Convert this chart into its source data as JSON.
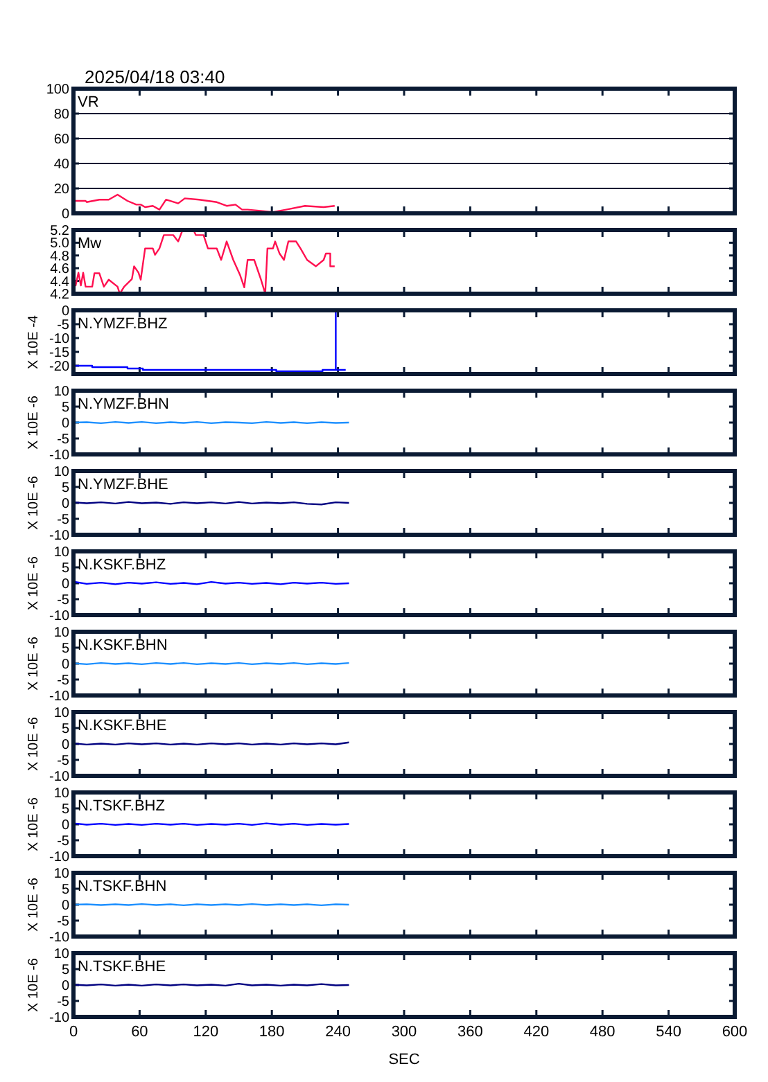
{
  "chart_data": [
    {
      "type": "line",
      "title": "VR",
      "annotations": [
        "2025/04/18 03:40"
      ],
      "xlim": [
        0,
        600
      ],
      "xticks": [
        0,
        60,
        120,
        180,
        240,
        300,
        360,
        420,
        480,
        540,
        600
      ],
      "ylim": [
        0,
        100
      ],
      "yticks": [
        0,
        20,
        40,
        60,
        80,
        100
      ],
      "grid": "y",
      "tick_labels": "y",
      "x": [
        0,
        11,
        12,
        23.5,
        32,
        40,
        49,
        57,
        61,
        65,
        72,
        78,
        84,
        95,
        101,
        114,
        130,
        139,
        147,
        153,
        158,
        170,
        181,
        193,
        210,
        227,
        237
      ],
      "series": [
        {
          "color": "#ff1050",
          "values": [
            10,
            10,
            9,
            11,
            11,
            15,
            10,
            7,
            7,
            5,
            6,
            3,
            11,
            8,
            12,
            11,
            9,
            6,
            7,
            3,
            3,
            2,
            1,
            3,
            6,
            5,
            6
          ]
        }
      ]
    },
    {
      "type": "line",
      "title": "Mw",
      "xlim": [
        0,
        600
      ],
      "xticks": [
        0,
        60,
        120,
        180,
        240,
        300,
        360,
        420,
        480,
        540,
        600
      ],
      "ylim": [
        4.2,
        5.2
      ],
      "yticks": [
        4.2,
        4.4,
        4.6,
        4.8,
        {
          "value": 5,
          "label": "5.0"
        },
        5.2
      ],
      "tick_labels": "y",
      "x": [
        0,
        2,
        4.5,
        6.7,
        8.8,
        11,
        17,
        19,
        23.5,
        27.6,
        32,
        40,
        42,
        46,
        53,
        55,
        59,
        61,
        65,
        72,
        74,
        78,
        82,
        90.5,
        95,
        99,
        109,
        111,
        118,
        122,
        130,
        134,
        139,
        145,
        151,
        155,
        158,
        164,
        170,
        174,
        176,
        181,
        183,
        187,
        191,
        195,
        202,
        206,
        212,
        220,
        227,
        229,
        233,
        233,
        237
      ],
      "series": [
        {
          "color": "#ff1050",
          "values": [
            4.53,
            4.33,
            4.53,
            4.33,
            4.53,
            4.31,
            4.31,
            4.52,
            4.52,
            4.31,
            4.42,
            4.31,
            4.2,
            4.31,
            4.43,
            4.63,
            4.53,
            4.42,
            4.91,
            4.91,
            4.81,
            4.91,
            5.12,
            5.12,
            5.02,
            5.2,
            5.2,
            5.12,
            5.12,
            4.91,
            4.91,
            4.73,
            5.02,
            4.73,
            4.5,
            4.3,
            4.73,
            4.73,
            4.43,
            4.2,
            4.91,
            4.91,
            5.02,
            4.83,
            4.73,
            5.02,
            5.02,
            4.91,
            4.73,
            4.63,
            4.73,
            4.83,
            4.83,
            4.63,
            4.63
          ]
        }
      ]
    },
    {
      "type": "line",
      "title": "N.YMZF.BHZ",
      "ylabel": "X 10E -4",
      "xlim": [
        0,
        600
      ],
      "xticks": [
        0,
        60,
        120,
        180,
        240,
        300,
        360,
        420,
        480,
        540,
        600
      ],
      "ylim": [
        -23,
        0
      ],
      "yticks": [
        -20,
        -15,
        -10,
        -5,
        0
      ],
      "tick_labels": "y",
      "x": [
        0,
        17,
        17,
        49,
        49,
        63,
        63,
        184,
        184,
        212,
        212,
        226,
        226,
        238,
        238,
        238,
        247
      ],
      "series": [
        {
          "color": "#0000ff",
          "values": [
            -20,
            -20,
            -20.5,
            -20.5,
            -21,
            -21,
            -21.5,
            -21.5,
            -22,
            -22,
            -22,
            -22,
            -21.5,
            -21.5,
            0,
            -21.5,
            -21.5
          ]
        }
      ]
    },
    {
      "type": "line",
      "title": "N.YMZF.BHN",
      "ylabel": "X 10E -6",
      "xlim": [
        0,
        600
      ],
      "xticks": [
        0,
        60,
        120,
        180,
        240,
        300,
        360,
        420,
        480,
        540,
        600
      ],
      "ylim": [
        -10,
        10
      ],
      "yticks": [
        -10,
        -5,
        0,
        5,
        10
      ],
      "tick_labels": "y",
      "x": [
        0,
        12,
        25,
        38,
        50,
        62,
        75,
        88,
        100,
        112,
        125,
        138,
        150,
        162,
        175,
        188,
        200,
        212,
        225,
        238,
        250
      ],
      "series": [
        {
          "color": "#1e90ff",
          "values": [
            0,
            0.1,
            -0.2,
            0.2,
            -0.1,
            0.2,
            -0.2,
            0.1,
            -0.1,
            0.2,
            -0.2,
            0.1,
            0,
            -0.2,
            0.2,
            -0.1,
            0.1,
            -0.2,
            0.1,
            -0.1,
            0
          ]
        }
      ]
    },
    {
      "type": "line",
      "title": "N.YMZF.BHE",
      "ylabel": "X 10E -6",
      "xlim": [
        0,
        600
      ],
      "xticks": [
        0,
        60,
        120,
        180,
        240,
        300,
        360,
        420,
        480,
        540,
        600
      ],
      "ylim": [
        -10,
        10
      ],
      "yticks": [
        -10,
        -5,
        0,
        5,
        10
      ],
      "tick_labels": "y",
      "x": [
        0,
        12,
        25,
        38,
        50,
        62,
        75,
        88,
        100,
        112,
        125,
        138,
        150,
        162,
        175,
        188,
        200,
        212,
        225,
        238,
        250
      ],
      "series": [
        {
          "color": "#000080",
          "values": [
            0.2,
            -0.1,
            0.2,
            -0.2,
            0.3,
            -0.1,
            0.1,
            -0.3,
            0.2,
            -0.1,
            0.2,
            -0.2,
            0.3,
            -0.2,
            0.1,
            -0.1,
            0.2,
            -0.3,
            -0.5,
            0.2,
            0
          ]
        }
      ]
    },
    {
      "type": "line",
      "title": "N.KSKF.BHZ",
      "ylabel": "X 10E -6",
      "xlim": [
        0,
        600
      ],
      "xticks": [
        0,
        60,
        120,
        180,
        240,
        300,
        360,
        420,
        480,
        540,
        600
      ],
      "ylim": [
        -10,
        10
      ],
      "yticks": [
        -10,
        -5,
        0,
        5,
        10
      ],
      "tick_labels": "y",
      "x": [
        0,
        12,
        25,
        38,
        50,
        62,
        75,
        88,
        100,
        112,
        125,
        138,
        150,
        162,
        175,
        188,
        200,
        212,
        225,
        238,
        250
      ],
      "series": [
        {
          "color": "#0000ff",
          "values": [
            0.5,
            -0.2,
            0.2,
            -0.3,
            0.2,
            -0.1,
            0.3,
            -0.2,
            0.1,
            -0.3,
            0.4,
            -0.1,
            0.2,
            -0.2,
            0.1,
            -0.3,
            0.2,
            -0.1,
            0.2,
            -0.2,
            0
          ]
        }
      ]
    },
    {
      "type": "line",
      "title": "N.KSKF.BHN",
      "ylabel": "X 10E -6",
      "xlim": [
        0,
        600
      ],
      "xticks": [
        0,
        60,
        120,
        180,
        240,
        300,
        360,
        420,
        480,
        540,
        600
      ],
      "ylim": [
        -10,
        10
      ],
      "yticks": [
        -10,
        -5,
        0,
        5,
        10
      ],
      "tick_labels": "y",
      "x": [
        0,
        12,
        25,
        38,
        50,
        62,
        75,
        88,
        100,
        112,
        125,
        138,
        150,
        162,
        175,
        188,
        200,
        212,
        225,
        238,
        250
      ],
      "series": [
        {
          "color": "#1e90ff",
          "values": [
            0.1,
            -0.2,
            0.2,
            -0.1,
            0.1,
            -0.2,
            0.2,
            -0.1,
            0.2,
            -0.2,
            0.1,
            -0.1,
            0.2,
            -0.2,
            0.1,
            -0.1,
            0.2,
            -0.2,
            0.1,
            -0.1,
            0.2
          ]
        }
      ]
    },
    {
      "type": "line",
      "title": "N.KSKF.BHE",
      "ylabel": "X 10E -6",
      "xlim": [
        0,
        600
      ],
      "xticks": [
        0,
        60,
        120,
        180,
        240,
        300,
        360,
        420,
        480,
        540,
        600
      ],
      "ylim": [
        -10,
        10
      ],
      "yticks": [
        -10,
        -5,
        0,
        5,
        10
      ],
      "tick_labels": "y",
      "x": [
        0,
        12,
        25,
        38,
        50,
        62,
        75,
        88,
        100,
        112,
        125,
        138,
        150,
        162,
        175,
        188,
        200,
        212,
        225,
        238,
        250
      ],
      "series": [
        {
          "color": "#000080",
          "values": [
            0.2,
            -0.2,
            0.1,
            -0.2,
            0.2,
            -0.1,
            0.2,
            -0.2,
            0.1,
            -0.2,
            0.2,
            -0.1,
            0.2,
            -0.2,
            0.1,
            -0.2,
            0.2,
            -0.1,
            0.2,
            -0.1,
            0.5
          ]
        }
      ]
    },
    {
      "type": "line",
      "title": "N.TSKF.BHZ",
      "ylabel": "X 10E -6",
      "xlim": [
        0,
        600
      ],
      "xticks": [
        0,
        60,
        120,
        180,
        240,
        300,
        360,
        420,
        480,
        540,
        600
      ],
      "ylim": [
        -10,
        10
      ],
      "yticks": [
        -10,
        -5,
        0,
        5,
        10
      ],
      "tick_labels": "y",
      "x": [
        0,
        12,
        25,
        38,
        50,
        62,
        75,
        88,
        100,
        112,
        125,
        138,
        150,
        162,
        175,
        188,
        200,
        212,
        225,
        238,
        250
      ],
      "series": [
        {
          "color": "#0000ff",
          "values": [
            0.3,
            -0.1,
            0.2,
            -0.2,
            0.1,
            -0.2,
            0.2,
            -0.1,
            0.2,
            -0.2,
            0.1,
            -0.1,
            0.2,
            -0.2,
            0.3,
            -0.1,
            0.2,
            -0.2,
            0.1,
            -0.1,
            0.1
          ]
        }
      ]
    },
    {
      "type": "line",
      "title": "N.TSKF.BHN",
      "ylabel": "X 10E -6",
      "xlim": [
        0,
        600
      ],
      "xticks": [
        0,
        60,
        120,
        180,
        240,
        300,
        360,
        420,
        480,
        540,
        600
      ],
      "ylim": [
        -10,
        10
      ],
      "yticks": [
        -10,
        -5,
        0,
        5,
        10
      ],
      "tick_labels": "y",
      "x": [
        0,
        12,
        25,
        38,
        50,
        62,
        75,
        88,
        100,
        112,
        125,
        138,
        150,
        162,
        175,
        188,
        200,
        212,
        225,
        238,
        250
      ],
      "series": [
        {
          "color": "#1e90ff",
          "values": [
            0,
            0.1,
            -0.1,
            0.1,
            -0.1,
            0.2,
            -0.1,
            0.1,
            -0.2,
            0.1,
            -0.1,
            0.1,
            -0.1,
            0.2,
            -0.1,
            0.1,
            -0.1,
            0.1,
            -0.2,
            0.1,
            0
          ]
        }
      ]
    },
    {
      "type": "line",
      "title": "N.TSKF.BHE",
      "ylabel": "X 10E -6",
      "xlabel": "SEC",
      "xlim": [
        0,
        600
      ],
      "xticks": [
        0,
        60,
        120,
        180,
        240,
        300,
        360,
        420,
        480,
        540,
        600
      ],
      "ylim": [
        -10,
        10
      ],
      "yticks": [
        -10,
        -5,
        0,
        5,
        10
      ],
      "x": [
        0,
        12,
        25,
        38,
        50,
        62,
        75,
        88,
        100,
        112,
        125,
        138,
        150,
        162,
        175,
        188,
        200,
        212,
        225,
        238,
        250
      ],
      "series": [
        {
          "color": "#000080",
          "values": [
            0.1,
            -0.1,
            0.2,
            -0.2,
            0.1,
            -0.2,
            0.2,
            -0.1,
            0.2,
            -0.1,
            0.1,
            -0.2,
            0.4,
            -0.1,
            0.1,
            -0.2,
            0.1,
            -0.1,
            0.3,
            -0.1,
            0
          ]
        }
      ]
    }
  ]
}
